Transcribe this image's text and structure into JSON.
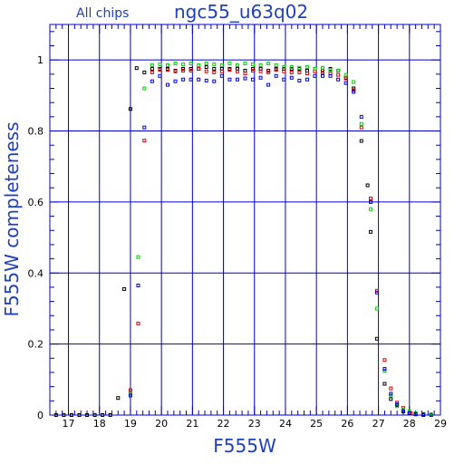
{
  "colors": {
    "axes": "#0000cc",
    "grid": "#0000cc",
    "label": "#1f3fbf",
    "series": [
      "#000000",
      "#e00000",
      "#00d000",
      "#0000e0"
    ]
  },
  "chart_data": {
    "type": "scatter",
    "title": "ngc55_u63q02",
    "subtitle": "All chips",
    "xlabel": "F555W",
    "ylabel": "F555W completeness",
    "xlim": [
      16.4,
      29.0
    ],
    "ylim": [
      0,
      1.1
    ],
    "xticks": [
      17,
      18,
      19,
      20,
      21,
      22,
      23,
      24,
      25,
      26,
      27,
      28,
      29
    ],
    "yticks": [
      0,
      0.2,
      0.4,
      0.6,
      0.8,
      1
    ],
    "ytick_labels": [
      "0",
      "0.2",
      "0.4",
      "0.6",
      "0.8",
      "1"
    ],
    "grid": true,
    "legend": "none",
    "marker": "open-square",
    "series": [
      {
        "color": "#000000",
        "points": [
          [
            16.6,
            0
          ],
          [
            16.85,
            0
          ],
          [
            17.1,
            0
          ],
          [
            17.35,
            0
          ],
          [
            17.6,
            0
          ],
          [
            17.85,
            0
          ],
          [
            18.1,
            0
          ],
          [
            18.35,
            0
          ],
          [
            18.6,
            0.048
          ],
          [
            18.8,
            0.355
          ],
          [
            19.0,
            0.862
          ],
          [
            19.2,
            0.977
          ],
          [
            19.45,
            0.965
          ],
          [
            19.7,
            0.975
          ],
          [
            19.95,
            0.975
          ],
          [
            20.2,
            0.975
          ],
          [
            20.45,
            0.97
          ],
          [
            20.7,
            0.975
          ],
          [
            20.95,
            0.975
          ],
          [
            21.2,
            0.975
          ],
          [
            21.45,
            0.98
          ],
          [
            21.7,
            0.975
          ],
          [
            21.95,
            0.975
          ],
          [
            22.2,
            0.975
          ],
          [
            22.45,
            0.975
          ],
          [
            22.7,
            0.97
          ],
          [
            22.95,
            0.975
          ],
          [
            23.2,
            0.975
          ],
          [
            23.45,
            0.97
          ],
          [
            23.7,
            0.975
          ],
          [
            23.95,
            0.975
          ],
          [
            24.2,
            0.975
          ],
          [
            24.45,
            0.975
          ],
          [
            24.7,
            0.97
          ],
          [
            24.95,
            0.975
          ],
          [
            25.2,
            0.97
          ],
          [
            25.45,
            0.975
          ],
          [
            25.7,
            0.97
          ],
          [
            25.95,
            0.95
          ],
          [
            26.2,
            0.92
          ],
          [
            26.45,
            0.772
          ],
          [
            26.65,
            0.647
          ],
          [
            26.75,
            0.516
          ],
          [
            26.95,
            0.215
          ],
          [
            27.2,
            0.088
          ],
          [
            27.4,
            0.045
          ],
          [
            27.6,
            0.028
          ],
          [
            27.8,
            0.012
          ],
          [
            28.0,
            0.005
          ],
          [
            28.2,
            0.002
          ],
          [
            28.45,
            0
          ],
          [
            28.7,
            0
          ]
        ]
      },
      {
        "color": "#e00000",
        "points": [
          [
            19.0,
            0.07
          ],
          [
            19.25,
            0.258
          ],
          [
            19.45,
            0.773
          ],
          [
            19.7,
            0.965
          ],
          [
            19.95,
            0.972
          ],
          [
            20.2,
            0.972
          ],
          [
            20.45,
            0.968
          ],
          [
            20.7,
            0.97
          ],
          [
            20.95,
            0.97
          ],
          [
            21.2,
            0.975
          ],
          [
            21.45,
            0.968
          ],
          [
            21.7,
            0.965
          ],
          [
            21.95,
            0.968
          ],
          [
            22.2,
            0.972
          ],
          [
            22.45,
            0.968
          ],
          [
            22.7,
            0.962
          ],
          [
            22.95,
            0.97
          ],
          [
            23.2,
            0.968
          ],
          [
            23.45,
            0.965
          ],
          [
            23.7,
            0.972
          ],
          [
            23.95,
            0.968
          ],
          [
            24.2,
            0.965
          ],
          [
            24.45,
            0.965
          ],
          [
            24.7,
            0.962
          ],
          [
            24.95,
            0.968
          ],
          [
            25.2,
            0.965
          ],
          [
            25.45,
            0.962
          ],
          [
            25.7,
            0.958
          ],
          [
            25.95,
            0.948
          ],
          [
            26.2,
            0.915
          ],
          [
            26.45,
            0.81
          ],
          [
            26.75,
            0.61
          ],
          [
            26.95,
            0.35
          ],
          [
            27.2,
            0.155
          ],
          [
            27.4,
            0.075
          ],
          [
            27.6,
            0.035
          ],
          [
            27.8,
            0.02
          ],
          [
            28.05,
            0.005
          ]
        ]
      },
      {
        "color": "#00d000",
        "points": [
          [
            19.0,
            0.06
          ],
          [
            19.25,
            0.445
          ],
          [
            19.45,
            0.92
          ],
          [
            19.7,
            0.985
          ],
          [
            19.95,
            0.988
          ],
          [
            20.2,
            0.985
          ],
          [
            20.45,
            0.99
          ],
          [
            20.7,
            0.988
          ],
          [
            20.95,
            0.99
          ],
          [
            21.2,
            0.985
          ],
          [
            21.45,
            0.99
          ],
          [
            21.7,
            0.988
          ],
          [
            21.95,
            0.985
          ],
          [
            22.2,
            0.99
          ],
          [
            22.45,
            0.985
          ],
          [
            22.7,
            0.99
          ],
          [
            22.95,
            0.988
          ],
          [
            23.2,
            0.985
          ],
          [
            23.45,
            0.99
          ],
          [
            23.7,
            0.985
          ],
          [
            23.95,
            0.98
          ],
          [
            24.2,
            0.98
          ],
          [
            24.45,
            0.978
          ],
          [
            24.7,
            0.98
          ],
          [
            24.95,
            0.975
          ],
          [
            25.2,
            0.978
          ],
          [
            25.45,
            0.972
          ],
          [
            25.7,
            0.97
          ],
          [
            25.95,
            0.958
          ],
          [
            26.2,
            0.938
          ],
          [
            26.45,
            0.82
          ],
          [
            26.75,
            0.58
          ],
          [
            26.95,
            0.3
          ],
          [
            27.2,
            0.125
          ],
          [
            27.4,
            0.055
          ],
          [
            27.6,
            0.025
          ],
          [
            27.8,
            0.015
          ],
          [
            28.0,
            0.01
          ],
          [
            28.2,
            0.005
          ],
          [
            28.45,
            0.003
          ],
          [
            28.7,
            0.002
          ]
        ]
      },
      {
        "color": "#0000e0",
        "points": [
          [
            19.0,
            0.055
          ],
          [
            19.25,
            0.365
          ],
          [
            19.45,
            0.81
          ],
          [
            19.7,
            0.94
          ],
          [
            19.95,
            0.955
          ],
          [
            20.2,
            0.93
          ],
          [
            20.45,
            0.94
          ],
          [
            20.7,
            0.945
          ],
          [
            20.95,
            0.945
          ],
          [
            21.2,
            0.945
          ],
          [
            21.45,
            0.942
          ],
          [
            21.7,
            0.94
          ],
          [
            21.95,
            0.955
          ],
          [
            22.2,
            0.945
          ],
          [
            22.45,
            0.945
          ],
          [
            22.7,
            0.948
          ],
          [
            22.95,
            0.945
          ],
          [
            23.2,
            0.95
          ],
          [
            23.45,
            0.93
          ],
          [
            23.7,
            0.955
          ],
          [
            23.95,
            0.945
          ],
          [
            24.2,
            0.95
          ],
          [
            24.45,
            0.942
          ],
          [
            24.7,
            0.945
          ],
          [
            24.95,
            0.955
          ],
          [
            25.2,
            0.955
          ],
          [
            25.45,
            0.955
          ],
          [
            25.7,
            0.945
          ],
          [
            25.95,
            0.935
          ],
          [
            26.2,
            0.91
          ],
          [
            26.45,
            0.84
          ],
          [
            26.75,
            0.6
          ],
          [
            26.95,
            0.345
          ],
          [
            27.2,
            0.13
          ],
          [
            27.4,
            0.06
          ],
          [
            27.6,
            0.03
          ],
          [
            27.8,
            0.01
          ],
          [
            28.0,
            0.005
          ],
          [
            28.2,
            0.003
          ],
          [
            28.45,
            0.002
          ]
        ]
      }
    ]
  }
}
